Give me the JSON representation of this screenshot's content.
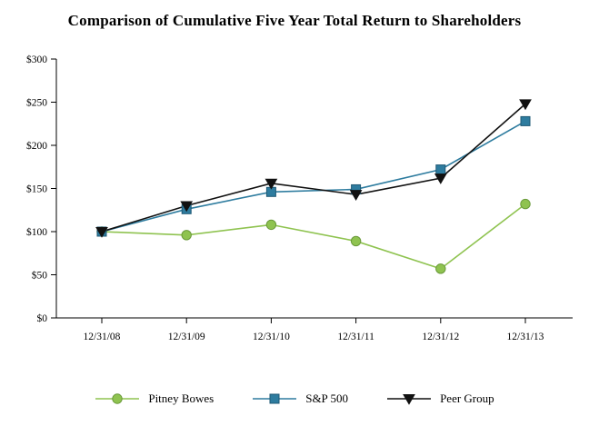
{
  "title": "Comparison of Cumulative Five Year Total Return to Shareholders",
  "chart_data": {
    "type": "line",
    "title": "Comparison of Cumulative Five Year Total Return to Shareholders",
    "categories": [
      "12/31/08",
      "12/31/09",
      "12/31/10",
      "12/31/11",
      "12/31/12",
      "12/31/13"
    ],
    "series": [
      {
        "name": "Pitney Bowes",
        "marker": "circle",
        "color": "#8fc350",
        "fill": "#8fc350",
        "stroke": "#6a9a3a",
        "values": [
          100,
          96,
          108,
          89,
          57,
          132
        ]
      },
      {
        "name": "S&P 500",
        "marker": "square",
        "color": "#2e7c9f",
        "fill": "#2e7c9f",
        "stroke": "#1d5874",
        "values": [
          100,
          126,
          146,
          149,
          172,
          228
        ]
      },
      {
        "name": "Peer Group",
        "marker": "triangle-down",
        "color": "#111111",
        "fill": "#111111",
        "stroke": "#111111",
        "values": [
          100,
          130,
          156,
          143,
          162,
          248
        ]
      }
    ],
    "xlabel": "",
    "ylabel": "",
    "ylim": [
      0,
      300
    ],
    "yticks": [
      0,
      50,
      100,
      150,
      200,
      250,
      300
    ],
    "ytick_prefix": "$",
    "grid": false,
    "legend_position": "bottom"
  }
}
